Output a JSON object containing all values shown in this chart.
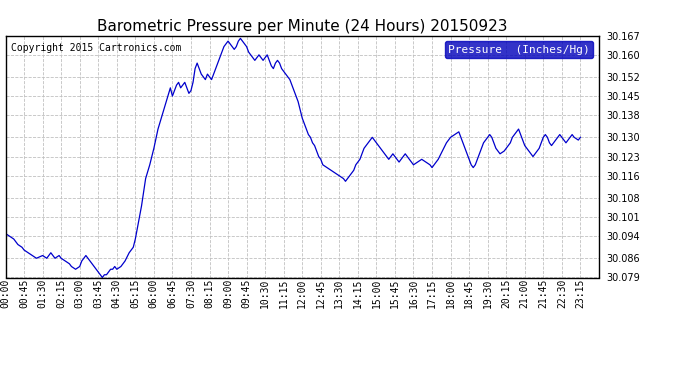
{
  "title": "Barometric Pressure per Minute (24 Hours) 20150923",
  "copyright": "Copyright 2015 Cartronics.com",
  "legend_label": "Pressure  (Inches/Hg)",
  "ylim": [
    30.079,
    30.167
  ],
  "yticks": [
    30.079,
    30.086,
    30.094,
    30.101,
    30.108,
    30.116,
    30.123,
    30.13,
    30.138,
    30.145,
    30.152,
    30.16,
    30.167
  ],
  "line_color": "#0000cc",
  "background_color": "#ffffff",
  "grid_color": "#c0c0c0",
  "title_fontsize": 11,
  "copyright_fontsize": 7,
  "tick_fontsize": 7,
  "legend_fontsize": 8,
  "xtick_labels": [
    "00:00",
    "00:45",
    "01:30",
    "02:15",
    "03:00",
    "03:45",
    "04:30",
    "05:15",
    "06:00",
    "06:45",
    "07:30",
    "08:15",
    "09:00",
    "09:45",
    "10:30",
    "11:15",
    "12:00",
    "12:45",
    "13:30",
    "14:15",
    "15:00",
    "15:45",
    "16:30",
    "17:15",
    "18:00",
    "18:45",
    "19:30",
    "20:15",
    "21:00",
    "21:45",
    "22:30",
    "23:15"
  ],
  "x_values": [
    0,
    45,
    90,
    135,
    180,
    225,
    270,
    315,
    360,
    405,
    450,
    495,
    540,
    585,
    630,
    675,
    720,
    765,
    810,
    855,
    900,
    945,
    990,
    1035,
    1080,
    1125,
    1170,
    1215,
    1260,
    1305,
    1350,
    1395
  ],
  "xlim": [
    0,
    1440
  ],
  "pressure_data": [
    [
      0,
      30.095
    ],
    [
      10,
      30.094
    ],
    [
      20,
      30.093
    ],
    [
      30,
      30.091
    ],
    [
      40,
      30.09
    ],
    [
      45,
      30.089
    ],
    [
      55,
      30.088
    ],
    [
      65,
      30.087
    ],
    [
      75,
      30.086
    ],
    [
      90,
      30.087
    ],
    [
      100,
      30.086
    ],
    [
      105,
      30.087
    ],
    [
      110,
      30.088
    ],
    [
      120,
      30.086
    ],
    [
      130,
      30.087
    ],
    [
      135,
      30.086
    ],
    [
      145,
      30.085
    ],
    [
      155,
      30.084
    ],
    [
      160,
      30.083
    ],
    [
      170,
      30.082
    ],
    [
      180,
      30.083
    ],
    [
      185,
      30.085
    ],
    [
      190,
      30.086
    ],
    [
      195,
      30.087
    ],
    [
      200,
      30.086
    ],
    [
      205,
      30.085
    ],
    [
      210,
      30.084
    ],
    [
      215,
      30.083
    ],
    [
      220,
      30.082
    ],
    [
      225,
      30.081
    ],
    [
      230,
      30.08
    ],
    [
      235,
      30.079
    ],
    [
      240,
      30.08
    ],
    [
      245,
      30.08
    ],
    [
      250,
      30.081
    ],
    [
      255,
      30.082
    ],
    [
      260,
      30.082
    ],
    [
      265,
      30.083
    ],
    [
      270,
      30.082
    ],
    [
      280,
      30.083
    ],
    [
      290,
      30.085
    ],
    [
      300,
      30.088
    ],
    [
      310,
      30.09
    ],
    [
      315,
      30.093
    ],
    [
      320,
      30.097
    ],
    [
      330,
      30.105
    ],
    [
      340,
      30.115
    ],
    [
      350,
      30.12
    ],
    [
      360,
      30.126
    ],
    [
      370,
      30.133
    ],
    [
      380,
      30.138
    ],
    [
      390,
      30.143
    ],
    [
      400,
      30.148
    ],
    [
      405,
      30.145
    ],
    [
      410,
      30.147
    ],
    [
      415,
      30.149
    ],
    [
      420,
      30.15
    ],
    [
      425,
      30.148
    ],
    [
      430,
      30.149
    ],
    [
      435,
      30.15
    ],
    [
      440,
      30.148
    ],
    [
      445,
      30.146
    ],
    [
      450,
      30.147
    ],
    [
      455,
      30.15
    ],
    [
      460,
      30.155
    ],
    [
      465,
      30.157
    ],
    [
      470,
      30.155
    ],
    [
      475,
      30.153
    ],
    [
      480,
      30.152
    ],
    [
      485,
      30.151
    ],
    [
      490,
      30.153
    ],
    [
      495,
      30.152
    ],
    [
      500,
      30.151
    ],
    [
      505,
      30.153
    ],
    [
      510,
      30.155
    ],
    [
      515,
      30.157
    ],
    [
      520,
      30.159
    ],
    [
      525,
      30.161
    ],
    [
      530,
      30.163
    ],
    [
      535,
      30.164
    ],
    [
      540,
      30.165
    ],
    [
      545,
      30.164
    ],
    [
      550,
      30.163
    ],
    [
      555,
      30.162
    ],
    [
      560,
      30.163
    ],
    [
      565,
      30.165
    ],
    [
      570,
      30.166
    ],
    [
      575,
      30.165
    ],
    [
      580,
      30.164
    ],
    [
      585,
      30.163
    ],
    [
      590,
      30.161
    ],
    [
      595,
      30.16
    ],
    [
      600,
      30.159
    ],
    [
      605,
      30.158
    ],
    [
      610,
      30.159
    ],
    [
      615,
      30.16
    ],
    [
      620,
      30.159
    ],
    [
      625,
      30.158
    ],
    [
      630,
      30.159
    ],
    [
      635,
      30.16
    ],
    [
      640,
      30.158
    ],
    [
      645,
      30.156
    ],
    [
      650,
      30.155
    ],
    [
      655,
      30.157
    ],
    [
      660,
      30.158
    ],
    [
      665,
      30.157
    ],
    [
      670,
      30.155
    ],
    [
      675,
      30.154
    ],
    [
      680,
      30.153
    ],
    [
      685,
      30.152
    ],
    [
      690,
      30.151
    ],
    [
      695,
      30.149
    ],
    [
      700,
      30.147
    ],
    [
      705,
      30.145
    ],
    [
      710,
      30.143
    ],
    [
      715,
      30.14
    ],
    [
      720,
      30.137
    ],
    [
      725,
      30.135
    ],
    [
      730,
      30.133
    ],
    [
      735,
      30.131
    ],
    [
      740,
      30.13
    ],
    [
      745,
      30.128
    ],
    [
      750,
      30.127
    ],
    [
      755,
      30.125
    ],
    [
      760,
      30.123
    ],
    [
      765,
      30.122
    ],
    [
      770,
      30.12
    ],
    [
      780,
      30.119
    ],
    [
      790,
      30.118
    ],
    [
      800,
      30.117
    ],
    [
      810,
      30.116
    ],
    [
      820,
      30.115
    ],
    [
      825,
      30.114
    ],
    [
      830,
      30.115
    ],
    [
      835,
      30.116
    ],
    [
      840,
      30.117
    ],
    [
      845,
      30.118
    ],
    [
      850,
      30.12
    ],
    [
      855,
      30.121
    ],
    [
      860,
      30.122
    ],
    [
      865,
      30.124
    ],
    [
      870,
      30.126
    ],
    [
      875,
      30.127
    ],
    [
      880,
      30.128
    ],
    [
      885,
      30.129
    ],
    [
      890,
      30.13
    ],
    [
      895,
      30.129
    ],
    [
      900,
      30.128
    ],
    [
      905,
      30.127
    ],
    [
      910,
      30.126
    ],
    [
      915,
      30.125
    ],
    [
      920,
      30.124
    ],
    [
      925,
      30.123
    ],
    [
      930,
      30.122
    ],
    [
      935,
      30.123
    ],
    [
      940,
      30.124
    ],
    [
      945,
      30.123
    ],
    [
      950,
      30.122
    ],
    [
      955,
      30.121
    ],
    [
      960,
      30.122
    ],
    [
      965,
      30.123
    ],
    [
      970,
      30.124
    ],
    [
      975,
      30.123
    ],
    [
      980,
      30.122
    ],
    [
      985,
      30.121
    ],
    [
      990,
      30.12
    ],
    [
      1000,
      30.121
    ],
    [
      1010,
      30.122
    ],
    [
      1020,
      30.121
    ],
    [
      1030,
      30.12
    ],
    [
      1035,
      30.119
    ],
    [
      1040,
      30.12
    ],
    [
      1050,
      30.122
    ],
    [
      1060,
      30.125
    ],
    [
      1070,
      30.128
    ],
    [
      1080,
      30.13
    ],
    [
      1090,
      30.131
    ],
    [
      1100,
      30.132
    ],
    [
      1105,
      30.13
    ],
    [
      1110,
      30.128
    ],
    [
      1115,
      30.126
    ],
    [
      1120,
      30.124
    ],
    [
      1125,
      30.122
    ],
    [
      1130,
      30.12
    ],
    [
      1135,
      30.119
    ],
    [
      1140,
      30.12
    ],
    [
      1145,
      30.122
    ],
    [
      1150,
      30.124
    ],
    [
      1155,
      30.126
    ],
    [
      1160,
      30.128
    ],
    [
      1165,
      30.129
    ],
    [
      1170,
      30.13
    ],
    [
      1175,
      30.131
    ],
    [
      1180,
      30.13
    ],
    [
      1185,
      30.128
    ],
    [
      1190,
      30.126
    ],
    [
      1200,
      30.124
    ],
    [
      1210,
      30.125
    ],
    [
      1215,
      30.126
    ],
    [
      1220,
      30.127
    ],
    [
      1225,
      30.128
    ],
    [
      1230,
      30.13
    ],
    [
      1235,
      30.131
    ],
    [
      1240,
      30.132
    ],
    [
      1245,
      30.133
    ],
    [
      1250,
      30.131
    ],
    [
      1255,
      30.129
    ],
    [
      1260,
      30.127
    ],
    [
      1270,
      30.125
    ],
    [
      1275,
      30.124
    ],
    [
      1280,
      30.123
    ],
    [
      1285,
      30.124
    ],
    [
      1290,
      30.125
    ],
    [
      1295,
      30.126
    ],
    [
      1300,
      30.128
    ],
    [
      1305,
      30.13
    ],
    [
      1310,
      30.131
    ],
    [
      1315,
      30.13
    ],
    [
      1320,
      30.128
    ],
    [
      1325,
      30.127
    ],
    [
      1330,
      30.128
    ],
    [
      1335,
      30.129
    ],
    [
      1340,
      30.13
    ],
    [
      1345,
      30.131
    ],
    [
      1350,
      30.13
    ],
    [
      1355,
      30.129
    ],
    [
      1360,
      30.128
    ],
    [
      1365,
      30.129
    ],
    [
      1370,
      30.13
    ],
    [
      1375,
      30.131
    ],
    [
      1380,
      30.13
    ],
    [
      1390,
      30.129
    ],
    [
      1395,
      30.13
    ]
  ]
}
